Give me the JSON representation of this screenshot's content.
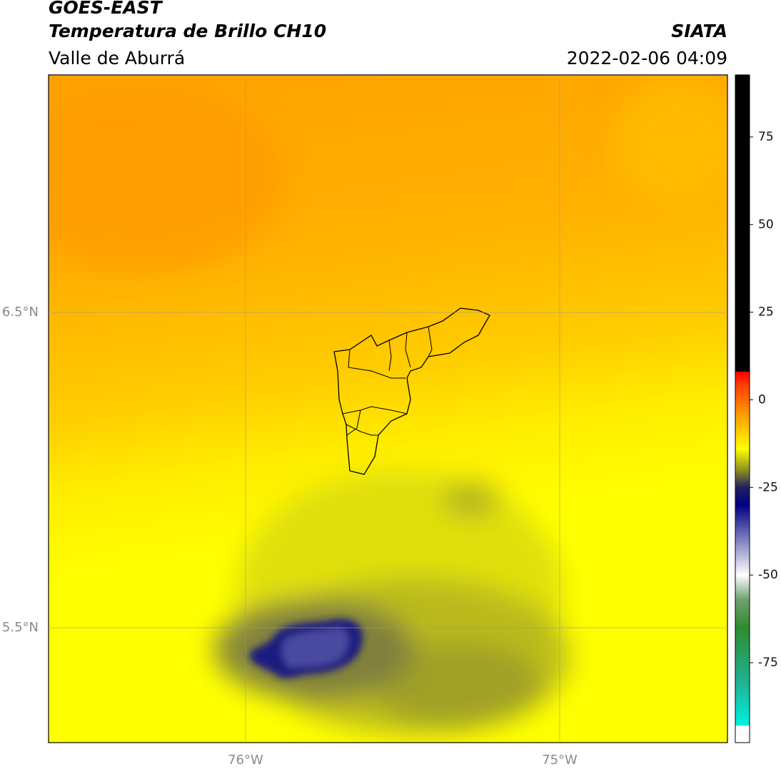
{
  "header": {
    "title": "GOES-EAST",
    "subtitle": "Temperatura de Brillo CH10",
    "region": "Valle de Aburrá",
    "source": "SIATA",
    "datetime": "2022-02-06 04:09"
  },
  "map": {
    "lonlim": [
      -76.627,
      -74.466
    ],
    "latlim": [
      5.136,
      7.253
    ],
    "lon_ticks": [
      {
        "value": -76,
        "label": "76°W"
      },
      {
        "value": -75,
        "label": "75°W"
      }
    ],
    "lat_ticks": [
      {
        "value": 6.5,
        "label": "6.5°N"
      },
      {
        "value": 5.5,
        "label": "5.5°N"
      }
    ]
  },
  "colorbar": {
    "lim": [
      -97.8,
      92.7
    ],
    "ticks": [
      75,
      50,
      25,
      0,
      -25,
      -50,
      -75
    ],
    "colormap": [
      {
        "value": -97.8,
        "color": "#ffffff"
      },
      {
        "value": -93,
        "color": "#ffffff"
      },
      {
        "value": -92.9,
        "color": "#00f0e0"
      },
      {
        "value": -80,
        "color": "#20b090"
      },
      {
        "value": -65,
        "color": "#2e8b2e"
      },
      {
        "value": -57,
        "color": "#70a070"
      },
      {
        "value": -50,
        "color": "#ffffff"
      },
      {
        "value": -40,
        "color": "#8080c0"
      },
      {
        "value": -30,
        "color": "#000080"
      },
      {
        "value": -25,
        "color": "#202060"
      },
      {
        "value": -20,
        "color": "#909020"
      },
      {
        "value": -14,
        "color": "#ffff00"
      },
      {
        "value": -5,
        "color": "#ffa500"
      },
      {
        "value": 4,
        "color": "#ff4000"
      },
      {
        "value": 8,
        "color": "#ff0000"
      },
      {
        "value": 8.1,
        "color": "#000000"
      },
      {
        "value": 92.7,
        "color": "#000000"
      }
    ]
  }
}
